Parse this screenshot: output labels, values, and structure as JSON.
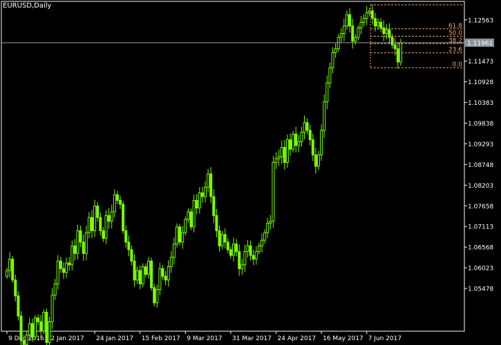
{
  "window": {
    "title": "EURUSD,Daily"
  },
  "colors": {
    "background": "#000000",
    "candle": "#7CFC00",
    "grid_axis": "#ffffff",
    "fibo": "#f0a868",
    "current_price_line": "#9aa3b0",
    "current_price_label_bg": "#8a939e"
  },
  "chart_data": {
    "type": "candlestick",
    "symbol": "EURUSD",
    "timeframe": "Daily",
    "title": "EURUSD,Daily",
    "ylim": [
      1.0435,
      1.1305
    ],
    "y_ticks": [
      1.05478,
      1.06023,
      1.06568,
      1.07113,
      1.07658,
      1.08203,
      1.08748,
      1.09293,
      1.09838,
      1.10383,
      1.10928,
      1.11473,
      1.12563
    ],
    "y_tick_labels": [
      "1.05478",
      "1.06023",
      "1.06568",
      "1.07113",
      "1.07658",
      "1.08203",
      "1.08748",
      "1.09293",
      "1.09838",
      "1.10383",
      "1.10928",
      "1.11473",
      "1.12563"
    ],
    "x_tick_labels": [
      "9 Dec 2016",
      "2 Jan 2017",
      "24 Jan 2017",
      "15 Feb 2017",
      "9 Mar 2017",
      "31 Mar 2017",
      "24 Apr 2017",
      "16 May 2017",
      "7 Jun 2017"
    ],
    "x_tick_bar_index": [
      0,
      15,
      31,
      47,
      63,
      79,
      95,
      111,
      127
    ],
    "current_price": 1.11961,
    "current_price_label": "1.11961",
    "fibonacci": {
      "high": 1.1296,
      "low": 1.113,
      "levels": [
        {
          "ratio": 100.0,
          "label": ""
        },
        {
          "ratio": 61.8,
          "label": "61.8"
        },
        {
          "ratio": 50.0,
          "label": "50.0"
        },
        {
          "ratio": 38.2,
          "label": "38.2"
        },
        {
          "ratio": 23.6,
          "label": "23.6"
        },
        {
          "ratio": 0.0,
          "label": "0.0"
        }
      ]
    },
    "candles_close": [
      1.0595,
      1.0625,
      1.057,
      1.0528,
      1.0475,
      1.041,
      1.04,
      1.0425,
      1.0455,
      1.042,
      1.047,
      1.046,
      1.0435,
      1.0485,
      1.0405,
      1.046,
      1.053,
      1.056,
      1.062,
      1.06,
      1.059,
      1.0615,
      1.061,
      1.066,
      1.064,
      1.07,
      1.067,
      1.064,
      1.0695,
      1.0735,
      1.07,
      1.0765,
      1.0735,
      1.07,
      1.068,
      1.074,
      1.0725,
      1.075,
      1.0795,
      1.078,
      1.077,
      1.07,
      1.067,
      1.065,
      1.062,
      1.057,
      1.0595,
      1.056,
      1.0605,
      1.0585,
      1.062,
      1.055,
      1.051,
      1.0545,
      1.06,
      1.058,
      1.057,
      1.0605,
      1.063,
      1.0665,
      1.071,
      1.067,
      1.0695,
      1.073,
      1.075,
      1.071,
      1.078,
      1.076,
      1.08,
      1.079,
      1.0815,
      1.085,
      1.079,
      1.074,
      1.07,
      1.066,
      1.069,
      1.067,
      1.065,
      1.0635,
      1.0665,
      1.0645,
      1.06,
      1.061,
      1.0645,
      1.066,
      1.0635,
      1.0625,
      1.0645,
      1.066,
      1.0675,
      1.0695,
      1.072,
      1.0725,
      1.088,
      1.089,
      1.0895,
      1.092,
      1.088,
      1.094,
      1.0915,
      1.0955,
      1.0925,
      1.0935,
      1.096,
      1.0985,
      1.0965,
      1.094,
      1.09,
      1.087,
      1.09,
      1.0965,
      1.104,
      1.109,
      1.113,
      1.117,
      1.118,
      1.121,
      1.122,
      1.124,
      1.127,
      1.124,
      1.12,
      1.121,
      1.1235,
      1.125,
      1.126,
      1.1275,
      1.128,
      1.126,
      1.124,
      1.125,
      1.1235,
      1.122,
      1.123,
      1.121,
      1.119,
      1.118,
      1.1145,
      1.1196
    ]
  }
}
